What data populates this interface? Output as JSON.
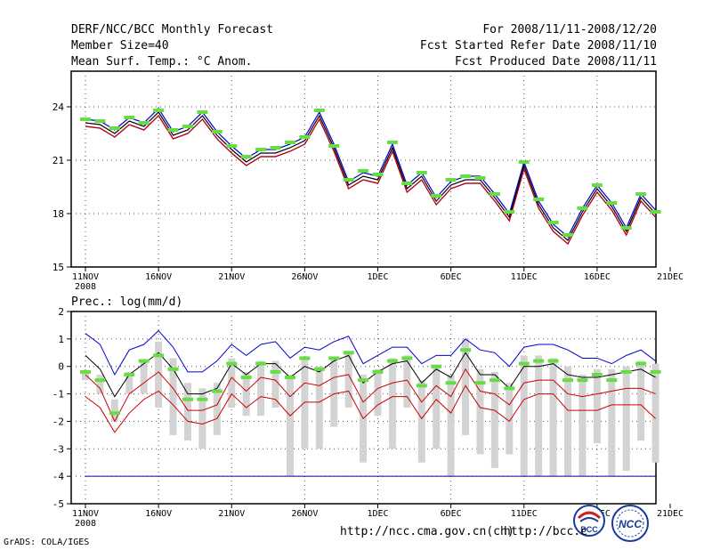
{
  "header": {
    "title": "DERF/NCC/BCC Monthly Forecast",
    "members": "Member Size=40",
    "variable": "Mean Surf. Temp.: °C Anom.",
    "period": "For 2008/11/11-2008/12/20",
    "started": "Fcst Started Refer Date 2008/11/10",
    "produced": "Fcst Produced Date 2008/11/11"
  },
  "footer": {
    "url1": "http://ncc.cma.gov.cn(ch)",
    "url2": "http://bcc.c",
    "credit": "GrADS: COLA/IGES",
    "logo1": "BCC",
    "logo2": "NCC"
  },
  "colors": {
    "ensemble_upper": "#0000cc",
    "ensemble_mean": "#000000",
    "ensemble_lower": "#cc0000",
    "observed_marker": "#66dd44",
    "spread_bar": "#d3d3d3",
    "threshold_line": "#0000aa"
  },
  "chart_data": [
    {
      "type": "line",
      "title": "",
      "xlabel": "",
      "ylabel": "Mean Surf. Temp.: °C Anom.",
      "xlim": [
        0,
        40
      ],
      "ylim": [
        15,
        26
      ],
      "yticks": [
        15,
        18,
        21,
        24
      ],
      "xticks": [
        {
          "pos": 0,
          "label": "11NOV",
          "sub": "2008"
        },
        {
          "pos": 5,
          "label": "16NOV"
        },
        {
          "pos": 10,
          "label": "21NOV"
        },
        {
          "pos": 15,
          "label": "26NOV"
        },
        {
          "pos": 20,
          "label": "1DEC"
        },
        {
          "pos": 25,
          "label": "6DEC"
        },
        {
          "pos": 30,
          "label": "11DEC"
        },
        {
          "pos": 35,
          "label": "16DEC"
        },
        {
          "pos": 40,
          "label": "21DEC"
        }
      ],
      "x": [
        0,
        1,
        2,
        3,
        4,
        5,
        6,
        7,
        8,
        9,
        10,
        11,
        12,
        13,
        14,
        15,
        16,
        17,
        18,
        19,
        20,
        21,
        22,
        23,
        24,
        25,
        26,
        27,
        28,
        29,
        30,
        31,
        32,
        33,
        34,
        35,
        36,
        37,
        38,
        39
      ],
      "series": [
        {
          "name": "upper",
          "values": [
            23.3,
            23.2,
            22.7,
            23.4,
            23.1,
            23.9,
            22.6,
            22.9,
            23.7,
            22.6,
            21.8,
            21.1,
            21.6,
            21.6,
            21.9,
            22.3,
            23.7,
            21.9,
            19.8,
            20.3,
            20.1,
            21.9,
            19.6,
            20.3,
            18.9,
            19.8,
            20.1,
            20.1,
            19.1,
            18.0,
            20.9,
            18.7,
            17.4,
            16.7,
            18.3,
            19.6,
            18.6,
            17.2,
            19.1,
            18.2
          ]
        },
        {
          "name": "mean",
          "values": [
            23.1,
            23.0,
            22.5,
            23.2,
            22.9,
            23.7,
            22.4,
            22.7,
            23.5,
            22.4,
            21.6,
            20.9,
            21.4,
            21.4,
            21.7,
            22.1,
            23.5,
            21.7,
            19.6,
            20.1,
            19.9,
            21.7,
            19.4,
            20.1,
            18.7,
            19.6,
            19.9,
            19.9,
            18.9,
            17.8,
            20.7,
            18.5,
            17.2,
            16.5,
            18.1,
            19.4,
            18.4,
            17.0,
            18.9,
            18.0
          ]
        },
        {
          "name": "lower",
          "values": [
            22.9,
            22.8,
            22.3,
            23.0,
            22.7,
            23.5,
            22.2,
            22.5,
            23.3,
            22.2,
            21.4,
            20.7,
            21.2,
            21.2,
            21.5,
            21.9,
            23.3,
            21.5,
            19.4,
            19.9,
            19.7,
            21.5,
            19.2,
            19.9,
            18.5,
            19.4,
            19.7,
            19.7,
            18.7,
            17.6,
            20.5,
            18.3,
            17.0,
            16.3,
            17.9,
            19.2,
            18.2,
            16.8,
            18.7,
            17.8
          ]
        },
        {
          "name": "observed",
          "values": [
            23.3,
            23.2,
            22.8,
            23.4,
            23.1,
            23.8,
            22.7,
            22.9,
            23.7,
            22.6,
            21.8,
            21.2,
            21.6,
            21.7,
            22.0,
            22.3,
            23.8,
            21.8,
            19.9,
            20.4,
            20.2,
            22.0,
            19.7,
            20.3,
            19.0,
            19.9,
            20.1,
            20.0,
            19.1,
            18.1,
            20.9,
            18.8,
            17.5,
            16.8,
            18.3,
            19.6,
            18.6,
            17.2,
            19.1,
            18.1
          ]
        }
      ]
    },
    {
      "type": "line",
      "title": "Prec.: log(mm/d)",
      "xlabel": "",
      "ylabel": "Prec.: log(mm/d)",
      "xlim": [
        0,
        40
      ],
      "ylim": [
        -5,
        2
      ],
      "yticks": [
        -5,
        -4,
        -3,
        -2,
        -1,
        0,
        1,
        2
      ],
      "xticks": [
        {
          "pos": 0,
          "label": "11NOV",
          "sub": "2008"
        },
        {
          "pos": 5,
          "label": "16NOV"
        },
        {
          "pos": 10,
          "label": "21NOV"
        },
        {
          "pos": 15,
          "label": "26NOV"
        },
        {
          "pos": 20,
          "label": "1DEC"
        },
        {
          "pos": 25,
          "label": "6DEC"
        },
        {
          "pos": 30,
          "label": "11DEC"
        },
        {
          "pos": 35,
          "label": "16DEC"
        },
        {
          "pos": 40,
          "label": "21DEC"
        }
      ],
      "threshold": -4,
      "x": [
        0,
        1,
        2,
        3,
        4,
        5,
        6,
        7,
        8,
        9,
        10,
        11,
        12,
        13,
        14,
        15,
        16,
        17,
        18,
        19,
        20,
        21,
        22,
        23,
        24,
        25,
        26,
        27,
        28,
        29,
        30,
        31,
        32,
        33,
        34,
        35,
        36,
        37,
        38,
        39
      ],
      "series": [
        {
          "name": "upper",
          "values": [
            1.2,
            0.8,
            -0.3,
            0.6,
            0.8,
            1.3,
            0.7,
            -0.2,
            -0.2,
            0.2,
            0.8,
            0.4,
            0.8,
            0.9,
            0.3,
            0.7,
            0.6,
            0.9,
            1.1,
            0.1,
            0.4,
            0.7,
            0.7,
            0.1,
            0.4,
            0.4,
            1.0,
            0.6,
            0.5,
            0.0,
            0.7,
            0.8,
            0.8,
            0.6,
            0.3,
            0.3,
            0.1,
            0.4,
            0.6,
            0.2
          ]
        },
        {
          "name": "mean",
          "values": [
            0.4,
            -0.1,
            -1.1,
            -0.3,
            0.1,
            0.5,
            -0.1,
            -1.0,
            -1.0,
            -0.8,
            0.1,
            -0.3,
            0.1,
            0.1,
            -0.4,
            0.0,
            -0.2,
            0.2,
            0.4,
            -0.6,
            -0.2,
            0.1,
            0.2,
            -0.6,
            -0.1,
            -0.4,
            0.5,
            -0.3,
            -0.3,
            -0.8,
            0.0,
            0.0,
            0.1,
            -0.3,
            -0.4,
            -0.4,
            -0.3,
            -0.2,
            -0.1,
            -0.4
          ]
        },
        {
          "name": "lower1",
          "values": [
            -0.3,
            -0.8,
            -2.0,
            -1.0,
            -0.6,
            -0.2,
            -0.8,
            -1.6,
            -1.6,
            -1.4,
            -0.4,
            -0.9,
            -0.4,
            -0.5,
            -1.1,
            -0.6,
            -0.7,
            -0.4,
            -0.3,
            -1.3,
            -0.8,
            -0.6,
            -0.5,
            -1.3,
            -0.7,
            -1.1,
            -0.1,
            -0.9,
            -1.0,
            -1.4,
            -0.6,
            -0.5,
            -0.5,
            -1.0,
            -1.1,
            -1.0,
            -0.9,
            -0.8,
            -0.8,
            -1.0
          ]
        },
        {
          "name": "lower2",
          "values": [
            -1.1,
            -1.5,
            -2.4,
            -1.7,
            -1.2,
            -0.9,
            -1.4,
            -2.0,
            -2.1,
            -1.9,
            -1.0,
            -1.5,
            -1.1,
            -1.2,
            -1.8,
            -1.3,
            -1.3,
            -1.0,
            -0.9,
            -1.9,
            -1.4,
            -1.1,
            -1.1,
            -1.9,
            -1.2,
            -1.7,
            -0.7,
            -1.5,
            -1.6,
            -2.0,
            -1.2,
            -1.0,
            -1.0,
            -1.6,
            -1.6,
            -1.6,
            -1.4,
            -1.4,
            -1.4,
            -1.9
          ]
        },
        {
          "name": "observed",
          "values": [
            -0.2,
            -0.5,
            -1.7,
            -0.3,
            0.2,
            0.4,
            -0.1,
            -1.2,
            -1.2,
            -0.9,
            0.1,
            -0.4,
            0.1,
            -0.2,
            -0.4,
            0.3,
            -0.1,
            0.3,
            0.5,
            -0.5,
            -0.2,
            0.2,
            0.3,
            -0.7,
            0.0,
            -0.6,
            0.6,
            -0.6,
            -0.5,
            -0.8,
            0.1,
            0.2,
            0.2,
            -0.5,
            -0.5,
            -0.3,
            -0.5,
            -0.2,
            0.1,
            -0.2
          ]
        },
        {
          "name": "bar_top",
          "values": [
            -0.2,
            -0.3,
            -1.2,
            -0.2,
            0.2,
            0.9,
            0.3,
            -0.6,
            -0.8,
            -0.6,
            0.3,
            -0.2,
            0.2,
            0.2,
            -0.3,
            0.3,
            0.0,
            0.3,
            0.5,
            -0.3,
            -0.1,
            0.3,
            0.4,
            -0.5,
            0.0,
            -0.3,
            1.0,
            -0.1,
            -0.2,
            -0.6,
            0.4,
            0.4,
            0.3,
            0.0,
            -0.3,
            -0.1,
            -0.1,
            0.0,
            0.2,
            0.1
          ]
        },
        {
          "name": "bar_bottom",
          "values": [
            -0.5,
            -1.0,
            -2.0,
            -1.0,
            -1.0,
            -1.5,
            -2.5,
            -2.7,
            -3.0,
            -2.5,
            -1.5,
            -1.8,
            -1.8,
            -1.5,
            -4.0,
            -3.0,
            -3.0,
            -2.2,
            -1.5,
            -3.5,
            -1.8,
            -3.0,
            -1.5,
            -3.5,
            -3.0,
            -4.0,
            -2.5,
            -3.2,
            -3.7,
            -3.2,
            -4.0,
            -4.0,
            -4.0,
            -4.0,
            -4.0,
            -2.8,
            -4.0,
            -3.8,
            -2.7,
            -3.5
          ]
        }
      ]
    }
  ]
}
